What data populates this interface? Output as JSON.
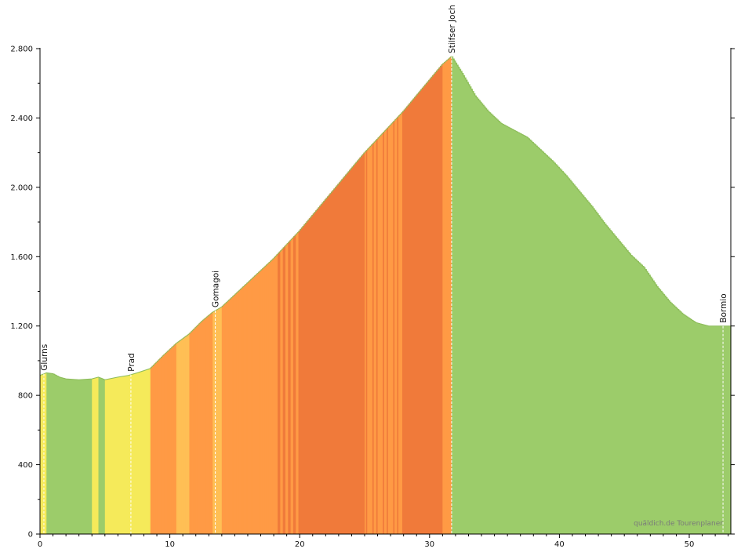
{
  "chart_data": {
    "type": "area",
    "title": "",
    "xlabel": "",
    "ylabel": "",
    "xlim": [
      0,
      53.2
    ],
    "ylim": [
      0,
      2800
    ],
    "x_ticks": [
      0,
      10,
      20,
      30,
      40,
      50
    ],
    "y_ticks": [
      0,
      400,
      800,
      1200,
      1600,
      2000,
      2400,
      2800
    ],
    "y_tick_labels": [
      "0",
      "400",
      "800",
      "1.200",
      "1.600",
      "2.000",
      "2.400",
      "2.800"
    ],
    "grid": false,
    "x": [
      0,
      0.5,
      1,
      1.5,
      2,
      3,
      4,
      4.5,
      5,
      6,
      6.8,
      7.5,
      8.5,
      9.5,
      10.5,
      11.5,
      12.5,
      13.3,
      14,
      15,
      16,
      17,
      18,
      19,
      20,
      21,
      22,
      23,
      24,
      25,
      26,
      27,
      28,
      29,
      30,
      31,
      31.7,
      32.5,
      33.5,
      34.5,
      35.5,
      36.5,
      37.5,
      38.5,
      39.5,
      40.5,
      41.5,
      42.5,
      43.5,
      44.5,
      45.5,
      46.5,
      47.5,
      48.5,
      49.5,
      50.5,
      51.5,
      52.5,
      53.2
    ],
    "elevation": [
      915,
      930,
      925,
      905,
      895,
      890,
      895,
      905,
      890,
      905,
      915,
      930,
      955,
      1030,
      1100,
      1155,
      1230,
      1280,
      1310,
      1380,
      1450,
      1520,
      1590,
      1670,
      1750,
      1840,
      1930,
      2020,
      2110,
      2200,
      2280,
      2360,
      2440,
      2530,
      2620,
      2710,
      2755,
      2660,
      2530,
      2440,
      2370,
      2330,
      2290,
      2220,
      2150,
      2070,
      1980,
      1890,
      1790,
      1700,
      1610,
      1540,
      1430,
      1340,
      1270,
      1220,
      1200,
      1200,
      1200
    ],
    "gradient_legend": {
      "colors": [
        "#9ccc6a",
        "#f5ea5a",
        "#ffbf55",
        "#ff9a45",
        "#f07a3a",
        "#c93a22"
      ]
    },
    "annotations": [
      {
        "x": 0.3,
        "label": "Glurns"
      },
      {
        "x": 7.0,
        "label": "Prad"
      },
      {
        "x": 13.5,
        "label": "Gomagoi"
      },
      {
        "x": 31.7,
        "label": "Stilfser Joch"
      },
      {
        "x": 52.6,
        "label": "Bormio"
      }
    ]
  },
  "watermark": "quäldich.de Tourenplaner"
}
